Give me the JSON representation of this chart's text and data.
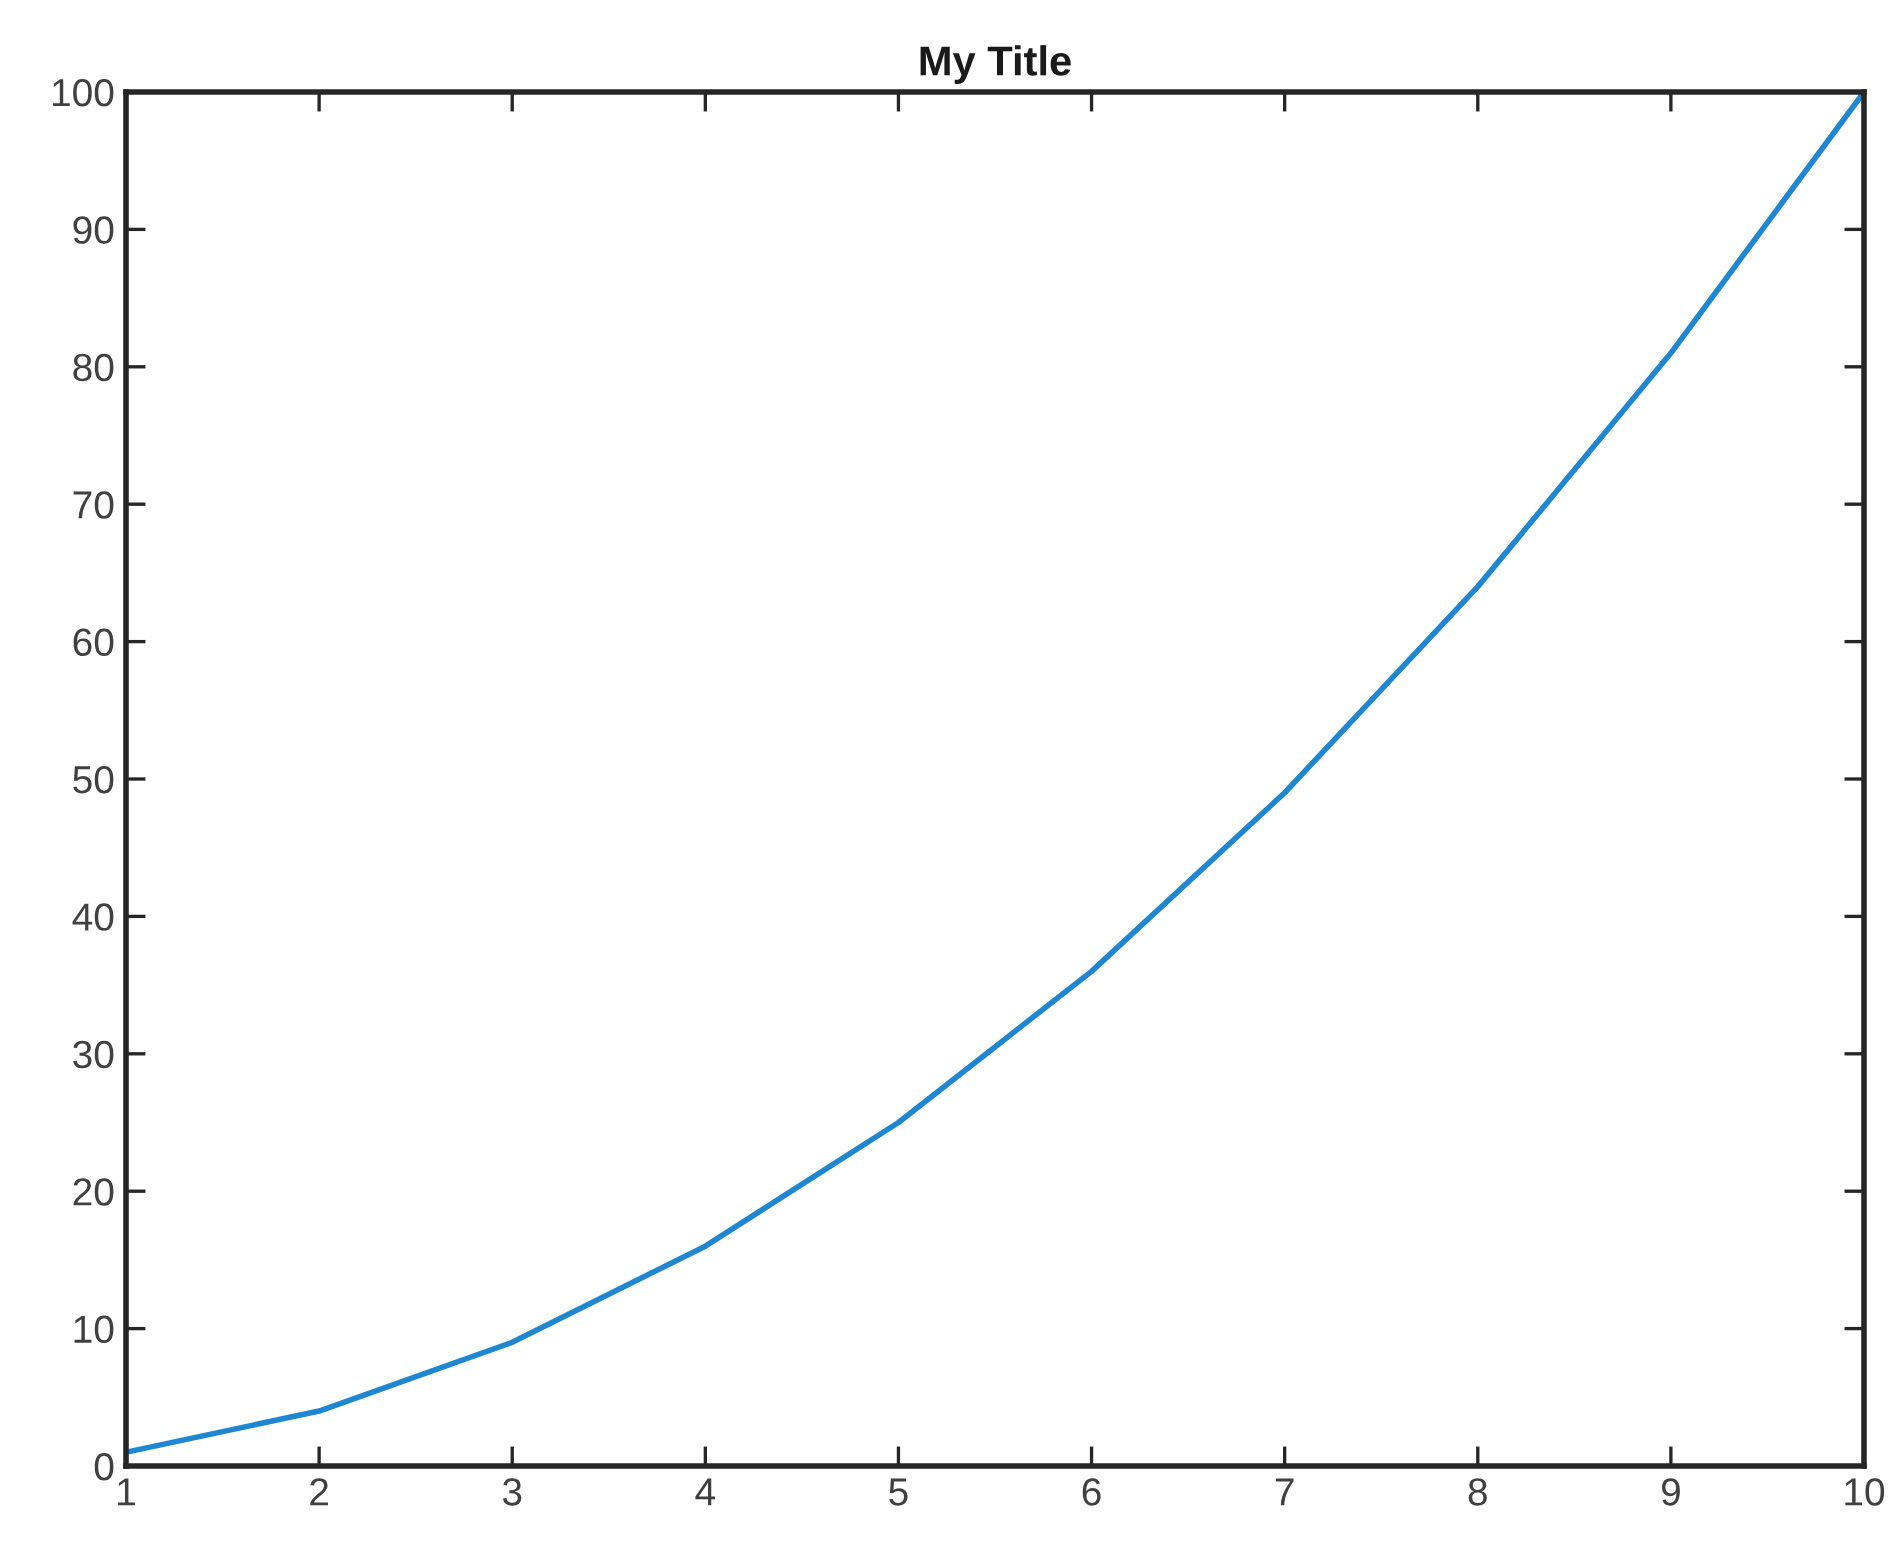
{
  "chart_data": {
    "type": "line",
    "title": "My Title",
    "x": [
      1,
      2,
      3,
      4,
      5,
      6,
      7,
      8,
      9,
      10
    ],
    "series": [
      {
        "color": "#1f86d1",
        "values": [
          1,
          4,
          9,
          16,
          25,
          36,
          49,
          64,
          81,
          100
        ]
      }
    ],
    "xlim": [
      1,
      10
    ],
    "xticks": [
      1,
      2,
      3,
      4,
      5,
      6,
      7,
      8,
      9,
      10
    ],
    "ylim": [
      0,
      100
    ],
    "yticks": [
      0,
      10,
      20,
      30,
      40,
      50,
      60,
      70,
      80,
      90,
      100
    ],
    "grid": false,
    "legend": false,
    "marker": "none",
    "line_style": "solid"
  }
}
